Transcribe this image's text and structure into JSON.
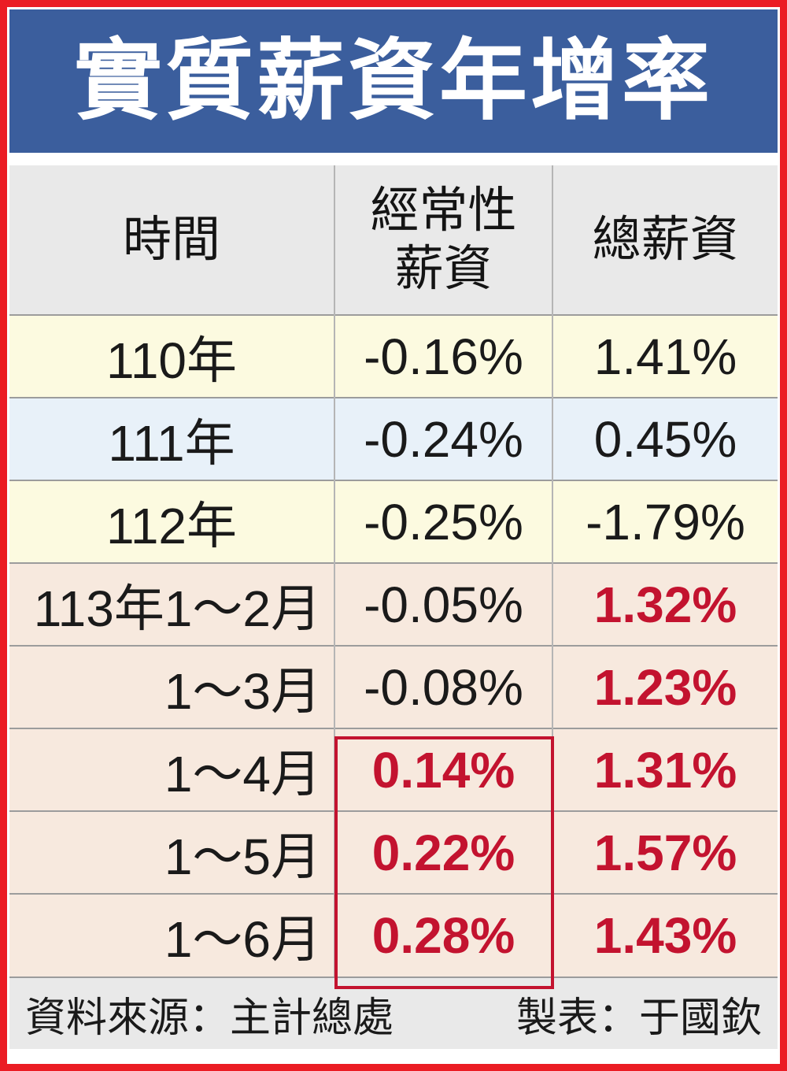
{
  "title": {
    "text": "實質薪資年增率"
  },
  "colors": {
    "frame_red": "#EB1C24",
    "banner_blue": "#3B5E9D",
    "accent_red": "#C3132F",
    "header_gray": "#E9E9E9",
    "row_yellow": "#FCFAE0",
    "row_blue": "#E8F1F9",
    "row_pink": "#F7E9DE"
  },
  "table": {
    "header": {
      "time": "時間",
      "regular_line1": "經常性",
      "regular_line2": "薪資",
      "total": "總薪資"
    },
    "rows": [
      {
        "time": "110年",
        "regular": "-0.16%",
        "total": "1.41%"
      },
      {
        "time": "111年",
        "regular": "-0.24%",
        "total": "0.45%"
      },
      {
        "time": "112年",
        "regular": "-0.25%",
        "total": "-1.79%"
      },
      {
        "time": "113年1～2月",
        "regular": "-0.05%",
        "total": "1.32%"
      },
      {
        "time": "1～3月",
        "regular": "-0.08%",
        "total": "1.23%"
      },
      {
        "time": "1～4月",
        "regular": "0.14%",
        "total": "1.31%"
      },
      {
        "time": "1～5月",
        "regular": "0.22%",
        "total": "1.57%"
      },
      {
        "time": "1～6月",
        "regular": "0.28%",
        "total": "1.43%"
      }
    ]
  },
  "footer": {
    "source": "資料來源：主計總處",
    "credit": "製表：于國欽"
  },
  "chart_data": {
    "type": "table",
    "title": "實質薪資年增率",
    "columns": [
      "時間",
      "經常性薪資",
      "總薪資"
    ],
    "rows": [
      [
        "110年",
        "-0.16%",
        "1.41%"
      ],
      [
        "111年",
        "-0.24%",
        "0.45%"
      ],
      [
        "112年",
        "-0.25%",
        "-1.79%"
      ],
      [
        "113年1～2月",
        "-0.05%",
        "1.32%"
      ],
      [
        "1～3月",
        "-0.08%",
        "1.23%"
      ],
      [
        "1～4月",
        "0.14%",
        "1.31%"
      ],
      [
        "1～5月",
        "0.22%",
        "1.57%"
      ],
      [
        "1～6月",
        "0.28%",
        "1.43%"
      ]
    ],
    "highlighted_red_values": [
      "1.32%",
      "1.23%",
      "0.14%",
      "1.31%",
      "0.22%",
      "1.57%",
      "0.28%",
      "1.43%"
    ],
    "boxed_region": {
      "column": "經常性薪資",
      "rows": [
        "1～4月",
        "1～5月",
        "1～6月"
      ]
    },
    "source": "主計總處",
    "credit": "于國欽"
  }
}
